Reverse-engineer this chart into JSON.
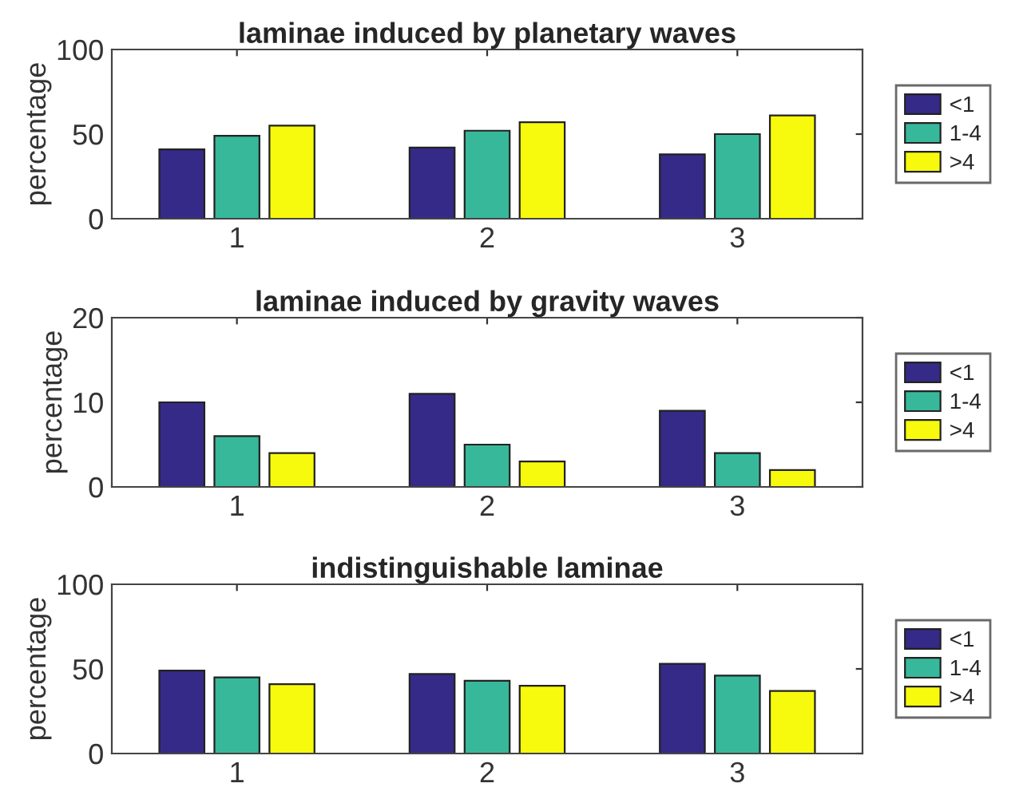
{
  "chart_data": [
    {
      "type": "bar",
      "title": "laminae induced by planetary waves",
      "ylabel": "percentage",
      "categories": [
        "1",
        "2",
        "3"
      ],
      "series": [
        {
          "name": "<1",
          "color": "#352a87",
          "values": [
            41,
            42,
            38
          ]
        },
        {
          "name": "1-4",
          "color": "#38b89a",
          "values": [
            49,
            52,
            50
          ]
        },
        {
          "name": ">4",
          "color": "#f8fa0d",
          "values": [
            55,
            57,
            61
          ]
        }
      ],
      "ylim": [
        0,
        100
      ],
      "yticks": [
        0,
        50,
        100
      ],
      "legend": "right"
    },
    {
      "type": "bar",
      "title": "laminae induced by gravity waves",
      "ylabel": "percentage",
      "categories": [
        "1",
        "2",
        "3"
      ],
      "series": [
        {
          "name": "<1",
          "color": "#352a87",
          "values": [
            10,
            11,
            9
          ]
        },
        {
          "name": "1-4",
          "color": "#38b89a",
          "values": [
            6,
            5,
            4
          ]
        },
        {
          "name": ">4",
          "color": "#f8fa0d",
          "values": [
            4,
            3,
            2
          ]
        }
      ],
      "ylim": [
        0,
        20
      ],
      "yticks": [
        0,
        10,
        20
      ],
      "legend": "right"
    },
    {
      "type": "bar",
      "title": "indistinguishable laminae",
      "ylabel": "percentage",
      "categories": [
        "1",
        "2",
        "3"
      ],
      "series": [
        {
          "name": "<1",
          "color": "#352a87",
          "values": [
            49,
            47,
            53
          ]
        },
        {
          "name": "1-4",
          "color": "#38b89a",
          "values": [
            45,
            43,
            46
          ]
        },
        {
          "name": ">4",
          "color": "#f8fa0d",
          "values": [
            41,
            40,
            37
          ]
        }
      ],
      "ylim": [
        0,
        100
      ],
      "yticks": [
        0,
        50,
        100
      ],
      "legend": "right"
    }
  ]
}
